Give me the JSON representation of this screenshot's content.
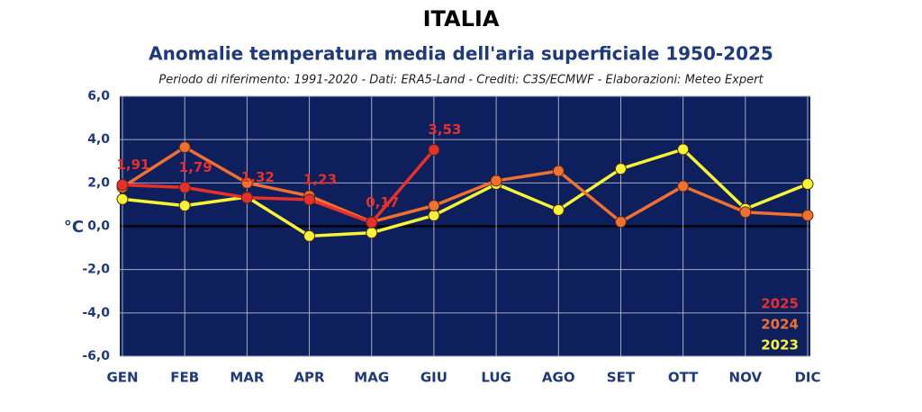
{
  "chart_data": {
    "type": "line",
    "title": "ITALIA",
    "subtitle": "Anomalie temperatura media dell'aria superficiale 1950-2025",
    "note": "Periodo di riferimento: 1991-2020 - Dati: ERA5-Land - Crediti: C3S/ECMWF - Elaborazioni: Meteo Expert",
    "y_label": "°C",
    "categories": [
      "GEN",
      "FEB",
      "MAR",
      "APR",
      "MAG",
      "GIU",
      "LUG",
      "AGO",
      "SET",
      "OTT",
      "NOV",
      "DIC"
    ],
    "ylim": [
      -6,
      6
    ],
    "yticks": [
      {
        "value": -6,
        "label": "-6,0"
      },
      {
        "value": -4,
        "label": "-4,0"
      },
      {
        "value": -2,
        "label": "-2,0"
      },
      {
        "value": 0,
        "label": "0,0"
      },
      {
        "value": 2,
        "label": "2,0"
      },
      {
        "value": 4,
        "label": "4,0"
      },
      {
        "value": 6,
        "label": "6,0"
      }
    ],
    "grid": true,
    "legend": "lower right",
    "series": [
      {
        "name": "2025",
        "color": "#e8302a",
        "values": [
          1.91,
          1.79,
          1.32,
          1.23,
          0.17,
          3.53,
          null,
          null,
          null,
          null,
          null,
          null
        ],
        "value_labels": [
          "1,91",
          "1,79",
          "1,32",
          "1,23",
          "0,17",
          "3,53",
          null,
          null,
          null,
          null,
          null,
          null
        ]
      },
      {
        "name": "2024",
        "color": "#f07030",
        "values": [
          1.8,
          3.65,
          2.0,
          1.4,
          0.2,
          0.95,
          2.1,
          2.55,
          0.2,
          1.85,
          0.65,
          0.5
        ]
      },
      {
        "name": "2023",
        "color": "#f5f535",
        "values": [
          1.25,
          0.95,
          1.35,
          -0.45,
          -0.3,
          0.5,
          1.95,
          0.75,
          2.65,
          3.55,
          0.8,
          1.95
        ]
      }
    ]
  }
}
